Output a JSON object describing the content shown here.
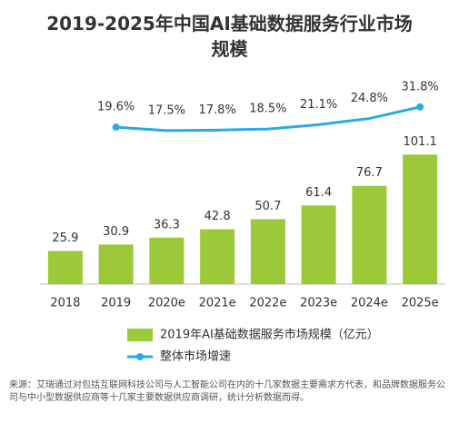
{
  "chart_data": {
    "type": "bar_line",
    "title": "2019-2025年中国AI基础数据服务行业市场规模",
    "categories": [
      "2018",
      "2019",
      "2020e",
      "2021e",
      "2022e",
      "2023e",
      "2024e",
      "2025e"
    ],
    "series": [
      {
        "name": "2019年AI基础数据服务市场规模（亿元）",
        "color": "#9bc93a",
        "type": "bar",
        "values": [
          25.9,
          30.9,
          36.3,
          42.8,
          50.7,
          61.4,
          76.7,
          101.1
        ]
      },
      {
        "name": "整体市场增速",
        "color": "#29abe2",
        "type": "line",
        "axis": "y2",
        "values": [
          null,
          19.6,
          17.5,
          17.8,
          18.5,
          21.1,
          24.8,
          31.8
        ],
        "value_labels": [
          null,
          "19.6%",
          "17.5%",
          "17.8%",
          "18.5%",
          "21.1%",
          "24.8%",
          "31.8%"
        ]
      }
    ],
    "ylim": [
      0,
      158
    ],
    "y2lim": [
      -75,
      47
    ],
    "note": "来源：艾瑞通过对包括互联网科技公司与人工智能公司在内的十几家数据主要需求方代表，和品牌数据服务公司与中小型数据供应商等十几家主要数据供应商调研，统计分析数据而得。"
  }
}
